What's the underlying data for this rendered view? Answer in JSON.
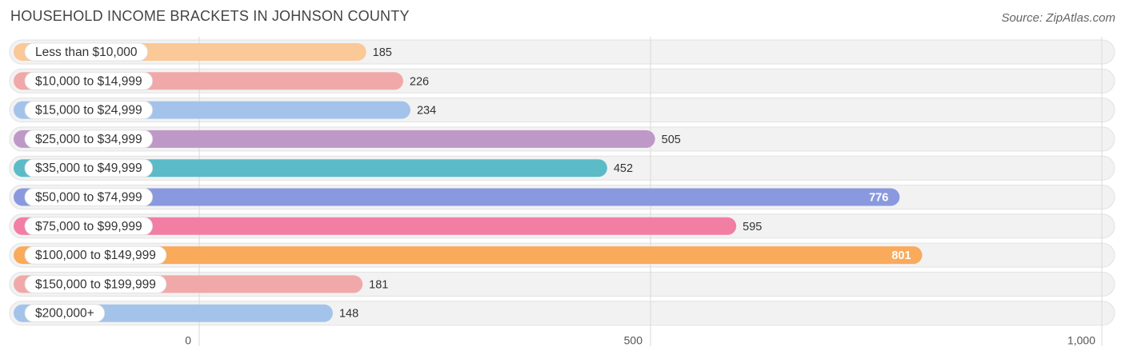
{
  "title": "HOUSEHOLD INCOME BRACKETS IN JOHNSON COUNTY",
  "source": "Source: ZipAtlas.com",
  "chart_data": {
    "type": "bar",
    "orientation": "horizontal",
    "title": "HOUSEHOLD INCOME BRACKETS IN JOHNSON COUNTY",
    "categories": [
      "Less than $10,000",
      "$10,000 to $14,999",
      "$15,000 to $24,999",
      "$25,000 to $34,999",
      "$35,000 to $49,999",
      "$50,000 to $74,999",
      "$75,000 to $99,999",
      "$100,000 to $149,999",
      "$150,000 to $199,999",
      "$200,000+"
    ],
    "values": [
      185,
      226,
      234,
      505,
      452,
      776,
      595,
      801,
      181,
      148
    ],
    "value_labels": [
      "185",
      "226",
      "234",
      "505",
      "452",
      "776",
      "595",
      "801",
      "181",
      "148"
    ],
    "colors": [
      "#fbc898",
      "#f0a9a8",
      "#a4c3ea",
      "#be98c7",
      "#5bbcc8",
      "#8a99df",
      "#f27ea4",
      "#f9aa5b",
      "#f0a9a8",
      "#a4c3ea"
    ],
    "xlim": [
      0,
      1000
    ],
    "x_ticks": [
      0,
      500,
      1000
    ],
    "x_tick_labels": [
      "0",
      "500",
      "1,000"
    ],
    "grid": true
  }
}
